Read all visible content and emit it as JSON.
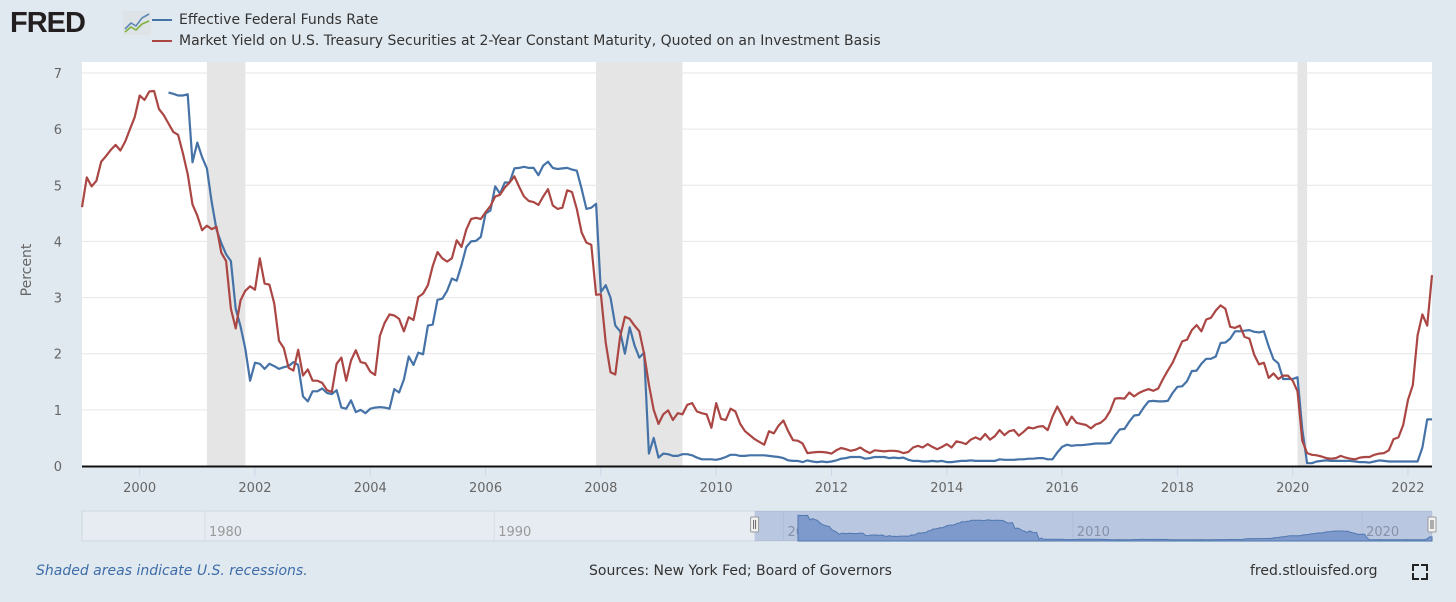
{
  "header": {
    "logo_text": "FRED",
    "logo_icon": "line-chart-icon",
    "legend": [
      {
        "label": "Effective Federal Funds Rate",
        "color": "#4572a7"
      },
      {
        "label": "Market Yield on U.S. Treasury Securities at 2-Year Constant Maturity, Quoted on an Investment Basis",
        "color": "#aa4643"
      }
    ]
  },
  "footer": {
    "recession_note": "Shaded areas indicate U.S. recessions.",
    "sources": "Sources: New York Fed; Board of Governors",
    "site": "fred.stlouisfed.org",
    "fullscreen_icon": "fullscreen-icon"
  },
  "chart_data": {
    "type": "line",
    "frequency": "monthly",
    "ylabel": "Percent",
    "xlim": [
      "1999-01",
      "2022-06"
    ],
    "ylim": [
      0,
      7
    ],
    "yticks": [
      "0",
      "1",
      "2",
      "3",
      "4",
      "5",
      "6",
      "7"
    ],
    "xticks": [
      "2000",
      "2002",
      "2004",
      "2006",
      "2008",
      "2010",
      "2012",
      "2014",
      "2016",
      "2018",
      "2020",
      "2022"
    ],
    "grid": "horizontal",
    "recessions": [
      [
        "2001-03",
        "2001-11"
      ],
      [
        "2007-12",
        "2009-06"
      ],
      [
        "2020-02",
        "2020-04"
      ]
    ],
    "recession_color": "#e5e5e5",
    "series": [
      {
        "name": "Effective Federal Funds Rate",
        "color": "#4572a7",
        "monthly": {
          "2000": [
            null,
            null,
            null,
            null,
            null,
            null,
            6.65,
            6.63,
            6.6,
            6.6,
            6.62,
            5.41
          ],
          "2001": [
            5.76,
            5.5,
            5.3,
            4.7,
            4.21,
            3.97,
            3.77,
            3.65,
            2.8,
            2.49,
            2.09,
            1.52
          ],
          "2002": [
            1.84,
            1.82,
            1.73,
            1.82,
            1.78,
            1.73,
            1.76,
            1.78,
            1.85,
            1.8,
            1.24,
            1.15
          ],
          "2003": [
            1.33,
            1.33,
            1.38,
            1.3,
            1.28,
            1.35,
            1.04,
            1.02,
            1.17,
            0.96,
            1.0,
            0.94
          ],
          "2004": [
            1.02,
            1.04,
            1.05,
            1.04,
            1.02,
            1.37,
            1.31,
            1.54,
            1.95,
            1.8,
            2.02,
            1.99
          ],
          "2005": [
            2.5,
            2.52,
            2.96,
            2.98,
            3.12,
            3.34,
            3.3,
            3.58,
            3.9,
            4.0,
            4.01,
            4.08
          ],
          "2006": [
            4.5,
            4.55,
            4.98,
            4.85,
            5.05,
            5.05,
            5.3,
            5.31,
            5.33,
            5.31,
            5.31,
            5.18
          ],
          "2007": [
            5.35,
            5.42,
            5.31,
            5.29,
            5.3,
            5.31,
            5.28,
            5.26,
            4.94,
            4.58,
            4.6,
            4.67
          ],
          "2008": [
            3.1,
            3.22,
            3.0,
            2.5,
            2.4,
            2.0,
            2.47,
            2.15,
            1.93,
            2.02,
            0.22,
            0.5
          ],
          "2009": [
            0.15,
            0.22,
            0.21,
            0.18,
            0.18,
            0.21,
            0.21,
            0.19,
            0.15,
            0.12,
            0.12,
            0.12
          ],
          "2010": [
            0.11,
            0.13,
            0.16,
            0.2,
            0.2,
            0.18,
            0.18,
            0.19,
            0.19,
            0.19,
            0.19,
            0.18
          ],
          "2011": [
            0.17,
            0.16,
            0.14,
            0.1,
            0.09,
            0.09,
            0.07,
            0.1,
            0.08,
            0.07,
            0.08,
            0.07
          ],
          "2012": [
            0.08,
            0.1,
            0.13,
            0.14,
            0.16,
            0.16,
            0.16,
            0.13,
            0.14,
            0.16,
            0.16,
            0.16
          ],
          "2013": [
            0.14,
            0.15,
            0.14,
            0.15,
            0.11,
            0.09,
            0.09,
            0.08,
            0.08,
            0.09,
            0.08,
            0.09
          ],
          "2014": [
            0.07,
            0.07,
            0.08,
            0.09,
            0.09,
            0.1,
            0.09,
            0.09,
            0.09,
            0.09,
            0.09,
            0.12
          ],
          "2015": [
            0.11,
            0.11,
            0.11,
            0.12,
            0.12,
            0.13,
            0.13,
            0.14,
            0.14,
            0.12,
            0.12,
            0.24
          ],
          "2016": [
            0.34,
            0.38,
            0.36,
            0.37,
            0.37,
            0.38,
            0.39,
            0.4,
            0.4,
            0.4,
            0.41,
            0.54
          ],
          "2017": [
            0.65,
            0.66,
            0.79,
            0.9,
            0.91,
            1.04,
            1.15,
            1.16,
            1.15,
            1.15,
            1.16,
            1.3
          ],
          "2018": [
            1.41,
            1.42,
            1.51,
            1.69,
            1.7,
            1.82,
            1.91,
            1.91,
            1.95,
            2.19,
            2.2,
            2.27
          ],
          "2019": [
            2.4,
            2.4,
            2.41,
            2.42,
            2.39,
            2.38,
            2.4,
            2.13,
            1.9,
            1.83,
            1.55,
            1.55
          ],
          "2020": [
            1.55,
            1.58,
            0.65,
            0.05,
            0.05,
            0.08,
            0.09,
            0.1,
            0.09,
            0.09,
            0.09,
            0.09
          ],
          "2021": [
            0.09,
            0.08,
            0.07,
            0.07,
            0.06,
            0.08,
            0.1,
            0.09,
            0.08,
            0.08,
            0.08,
            0.08
          ],
          "2022": [
            0.08,
            0.08,
            0.08,
            0.33,
            0.83,
            0.83
          ]
        }
      },
      {
        "name": "Market Yield on U.S. Treasury Securities at 2-Year Constant Maturity, Quoted on an Investment Basis",
        "color": "#aa4643",
        "monthly": {
          "1999": [
            4.61,
            5.14,
            4.98,
            5.08,
            5.42,
            5.52,
            5.63,
            5.72,
            5.62,
            5.78,
            6.0,
            6.22
          ],
          "2000": [
            6.6,
            6.52,
            6.67,
            6.68,
            6.36,
            6.25,
            6.1,
            5.95,
            5.9,
            5.57,
            5.2,
            4.66
          ],
          "2001": [
            4.46,
            4.2,
            4.28,
            4.22,
            4.26,
            3.8,
            3.65,
            2.8,
            2.45,
            2.95,
            3.12,
            3.2
          ],
          "2002": [
            3.14,
            3.7,
            3.25,
            3.23,
            2.9,
            2.23,
            2.1,
            1.75,
            1.7,
            2.07,
            1.61,
            1.72
          ],
          "2003": [
            1.52,
            1.52,
            1.48,
            1.35,
            1.32,
            1.82,
            1.93,
            1.52,
            1.88,
            2.06,
            1.85,
            1.83
          ],
          "2004": [
            1.68,
            1.62,
            2.32,
            2.55,
            2.7,
            2.68,
            2.62,
            2.4,
            2.65,
            2.6,
            3.01,
            3.07
          ],
          "2005": [
            3.22,
            3.56,
            3.81,
            3.7,
            3.64,
            3.7,
            4.02,
            3.9,
            4.21,
            4.4,
            4.42,
            4.4
          ],
          "2006": [
            4.52,
            4.63,
            4.8,
            4.83,
            4.96,
            5.05,
            5.16,
            4.97,
            4.8,
            4.72,
            4.7,
            4.65
          ],
          "2007": [
            4.8,
            4.93,
            4.64,
            4.58,
            4.6,
            4.91,
            4.88,
            4.58,
            4.16,
            3.98,
            3.94,
            3.05
          ],
          "2008": [
            3.06,
            2.2,
            1.67,
            1.63,
            2.3,
            2.66,
            2.62,
            2.5,
            2.4,
            2.0,
            1.45,
            1.0
          ],
          "2009": [
            0.75,
            0.92,
            0.99,
            0.82,
            0.94,
            0.92,
            1.09,
            1.12,
            0.97,
            0.94,
            0.92,
            0.68
          ],
          "2010": [
            1.12,
            0.84,
            0.82,
            1.02,
            0.97,
            0.75,
            0.62,
            0.55,
            0.48,
            0.43,
            0.38,
            0.62
          ],
          "2011": [
            0.58,
            0.72,
            0.81,
            0.62,
            0.46,
            0.45,
            0.4,
            0.23,
            0.24,
            0.25,
            0.25,
            0.24
          ],
          "2012": [
            0.22,
            0.28,
            0.32,
            0.3,
            0.27,
            0.29,
            0.33,
            0.27,
            0.23,
            0.28,
            0.27,
            0.26
          ],
          "2013": [
            0.27,
            0.27,
            0.26,
            0.23,
            0.25,
            0.33,
            0.36,
            0.33,
            0.39,
            0.34,
            0.3,
            0.34
          ],
          "2014": [
            0.39,
            0.33,
            0.44,
            0.42,
            0.39,
            0.47,
            0.51,
            0.47,
            0.57,
            0.47,
            0.53,
            0.64
          ],
          "2015": [
            0.55,
            0.62,
            0.64,
            0.54,
            0.61,
            0.69,
            0.67,
            0.7,
            0.71,
            0.64,
            0.88,
            1.06
          ],
          "2016": [
            0.9,
            0.73,
            0.88,
            0.77,
            0.75,
            0.73,
            0.67,
            0.74,
            0.77,
            0.84,
            0.98,
            1.2
          ],
          "2017": [
            1.21,
            1.2,
            1.31,
            1.24,
            1.3,
            1.34,
            1.37,
            1.34,
            1.38,
            1.55,
            1.7,
            1.84
          ],
          "2018": [
            2.03,
            2.22,
            2.25,
            2.42,
            2.51,
            2.4,
            2.61,
            2.64,
            2.77,
            2.86,
            2.8,
            2.48
          ],
          "2019": [
            2.46,
            2.5,
            2.3,
            2.27,
            1.98,
            1.81,
            1.84,
            1.57,
            1.65,
            1.55,
            1.61,
            1.61
          ],
          "2020": [
            1.52,
            1.33,
            0.45,
            0.23,
            0.2,
            0.19,
            0.17,
            0.14,
            0.13,
            0.14,
            0.18,
            0.15
          ],
          "2021": [
            0.13,
            0.12,
            0.15,
            0.16,
            0.16,
            0.2,
            0.22,
            0.23,
            0.28,
            0.48,
            0.51,
            0.73
          ],
          "2022": [
            1.18,
            1.44,
            2.33,
            2.7,
            2.5,
            3.4
          ]
        }
      }
    ],
    "navigator": {
      "xlim": [
        "1975-10",
        "2022-06"
      ],
      "xticks": [
        "1980",
        "1990",
        "2000",
        "2010",
        "2020"
      ],
      "selected_range": [
        "1999-01",
        "2022-06"
      ],
      "series": "Effective Federal Funds Rate"
    }
  }
}
